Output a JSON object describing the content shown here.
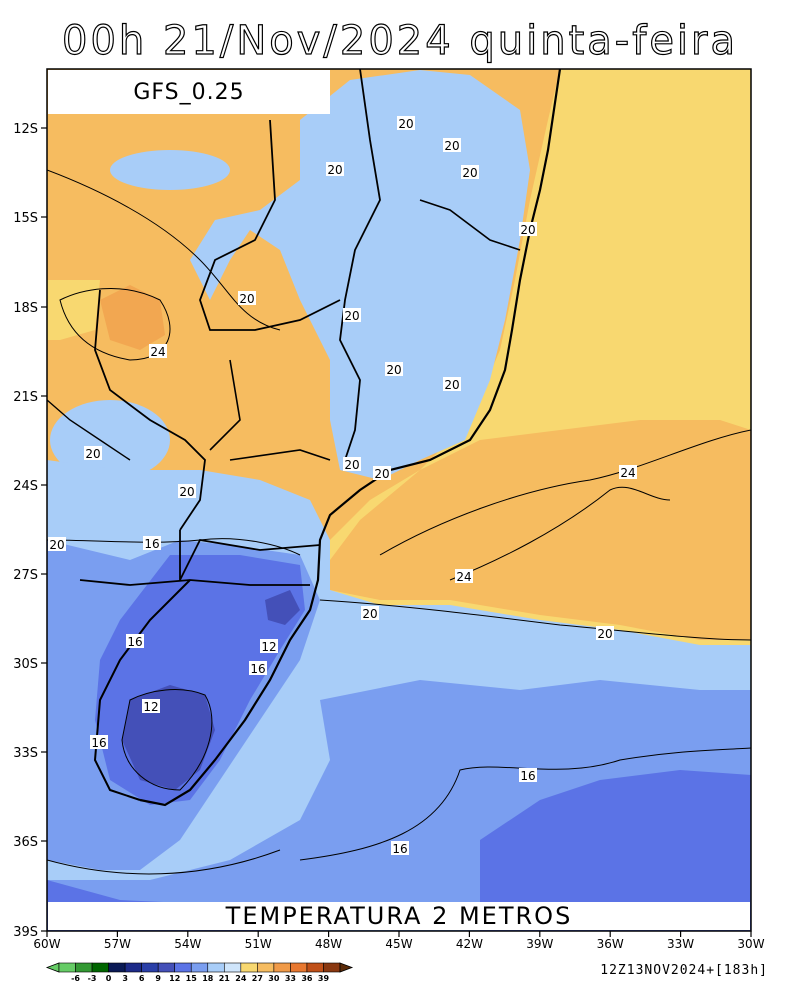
{
  "title": "00h 21/Nov/2024 quinta-feira",
  "model_label": "GFS_0.25",
  "map_title": "TEMPERATURA 2 METROS",
  "run_info": "12Z13NOV2024+[183h]",
  "lat_ticks": [
    "12S",
    "15S",
    "18S",
    "21S",
    "24S",
    "27S",
    "30S",
    "33S",
    "36S",
    "39S"
  ],
  "lon_ticks": [
    "60W",
    "57W",
    "54W",
    "51W",
    "48W",
    "45W",
    "42W",
    "39W",
    "36W",
    "33W",
    "30W"
  ],
  "colorbar": {
    "labels": [
      "-6",
      "-3",
      "0",
      "3",
      "6",
      "9",
      "12",
      "15",
      "18",
      "21",
      "24",
      "27",
      "30",
      "33",
      "36",
      "39"
    ],
    "colors": [
      "#66cc66",
      "#339933",
      "#006600",
      "#0a1a55",
      "#1c2a88",
      "#2a3fa8",
      "#4450b8",
      "#5b73e6",
      "#7a9ef0",
      "#a8cdf8",
      "#cfe5fb",
      "#f8d870",
      "#f6bc60",
      "#f09a48",
      "#e87830",
      "#c05018",
      "#8a3810"
    ]
  },
  "contour_labels": [
    {
      "text": "20"
    },
    {
      "text": "20"
    },
    {
      "text": "20"
    },
    {
      "text": "20"
    },
    {
      "text": "20"
    },
    {
      "text": "20"
    },
    {
      "text": "20"
    },
    {
      "text": "20"
    },
    {
      "text": "20"
    },
    {
      "text": "20"
    },
    {
      "text": "20"
    },
    {
      "text": "20"
    },
    {
      "text": "20"
    },
    {
      "text": "20"
    },
    {
      "text": "20"
    },
    {
      "text": "20"
    },
    {
      "text": "24"
    },
    {
      "text": "24"
    },
    {
      "text": "24"
    },
    {
      "text": "16"
    },
    {
      "text": "16"
    },
    {
      "text": "16"
    },
    {
      "text": "16"
    },
    {
      "text": "16"
    },
    {
      "text": "16"
    },
    {
      "text": "12"
    },
    {
      "text": "12"
    }
  ]
}
